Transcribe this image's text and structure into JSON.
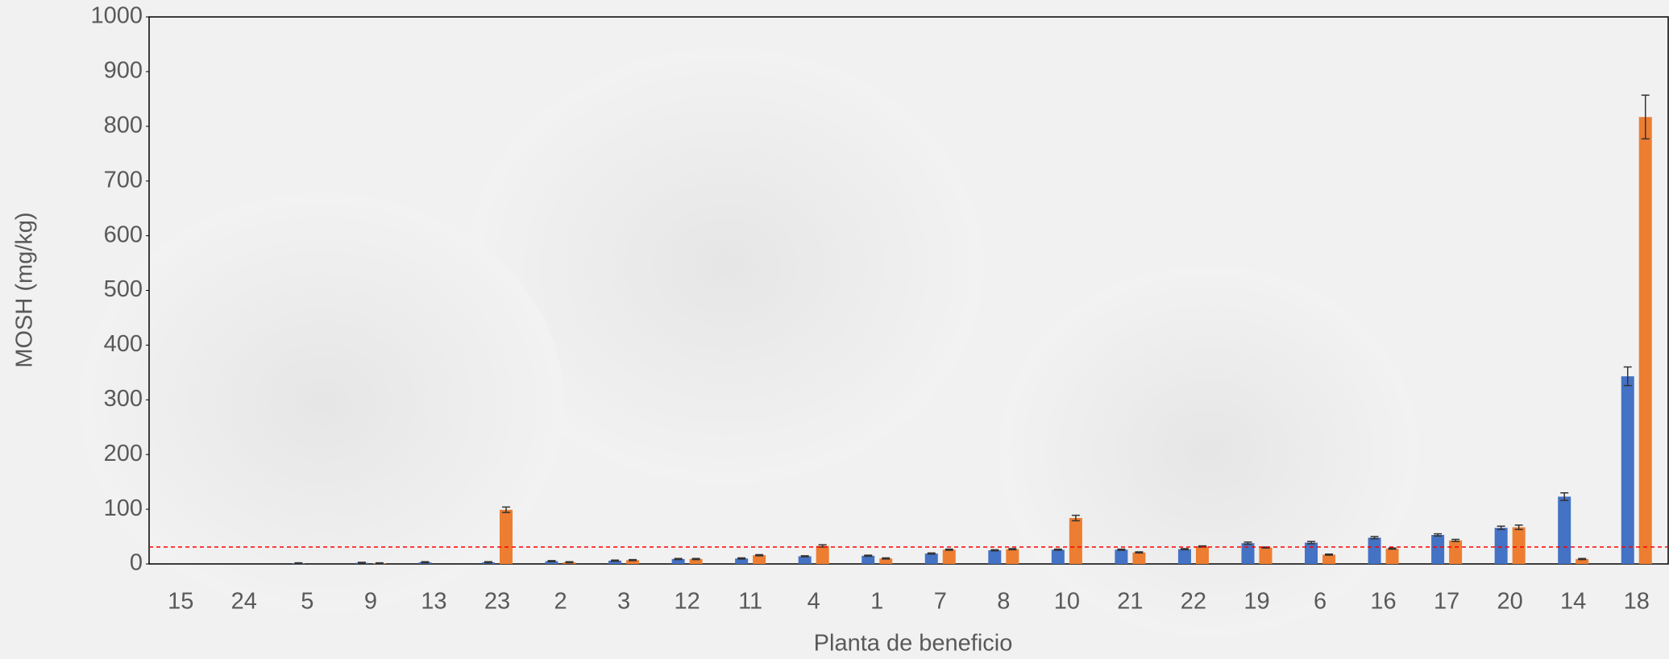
{
  "chart_data": {
    "type": "bar",
    "x_label": "Planta de beneficio",
    "y_label": "MOSH (mg/kg)",
    "categories": [
      "15",
      "24",
      "5",
      "9",
      "13",
      "23",
      "2",
      "3",
      "12",
      "11",
      "4",
      "1",
      "7",
      "8",
      "10",
      "21",
      "22",
      "19",
      "6",
      "16",
      "17",
      "20",
      "14",
      "18"
    ],
    "series": [
      {
        "color": "#4472c4",
        "values": [
          0,
          0,
          1,
          2,
          3,
          3,
          5,
          6,
          9,
          10,
          14,
          15,
          19,
          25,
          26,
          26,
          27,
          38,
          39,
          48,
          53,
          66,
          123,
          343
        ],
        "errors": [
          0,
          0,
          1,
          1,
          1,
          1,
          1,
          1,
          1,
          1,
          1,
          1,
          1,
          1,
          1,
          1,
          1,
          2,
          2,
          2,
          2,
          3,
          7,
          17
        ]
      },
      {
        "color": "#ed7d31",
        "values": [
          0,
          0,
          0,
          1,
          0,
          99,
          3,
          7,
          9,
          16,
          33,
          10,
          26,
          27,
          84,
          21,
          32,
          30,
          17,
          28,
          43,
          67,
          9,
          817
        ],
        "errors": [
          0,
          0,
          0,
          1,
          0,
          5,
          1,
          1,
          1,
          1,
          2,
          1,
          1,
          1,
          5,
          1,
          1,
          1,
          1,
          1,
          2,
          4,
          1,
          40
        ]
      }
    ],
    "reference_line": 31,
    "reference_color": "#ff0000",
    "ylim": [
      0,
      1000
    ],
    "yticks": [
      0,
      100,
      200,
      300,
      400,
      500,
      600,
      700,
      800,
      900,
      1000
    ]
  }
}
